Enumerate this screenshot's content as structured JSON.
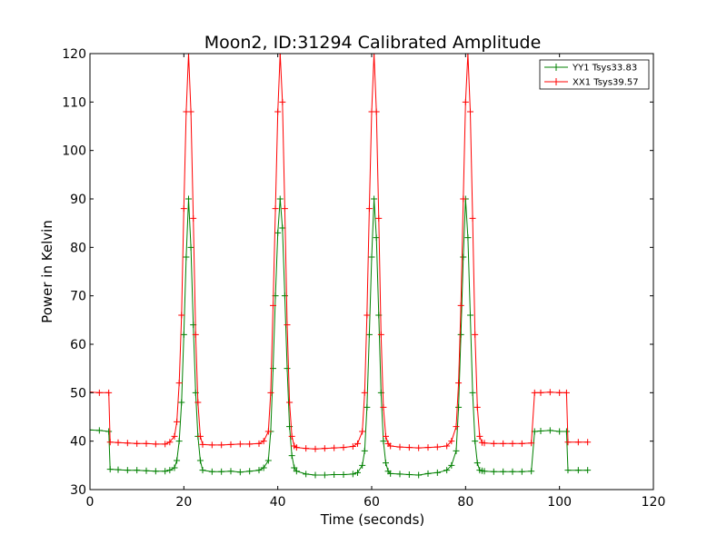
{
  "chart_data": {
    "type": "line",
    "title": "Moon2, ID:31294 Calibrated Amplitude",
    "xlabel": "Time (seconds)",
    "ylabel": "Power in Kelvin",
    "xlim": [
      0,
      120
    ],
    "ylim": [
      30,
      120
    ],
    "xticks": [
      0,
      20,
      40,
      60,
      80,
      100,
      120
    ],
    "yticks": [
      30,
      40,
      50,
      60,
      70,
      80,
      90,
      100,
      110,
      120
    ],
    "grid": false,
    "legend_position": "top-right",
    "series": [
      {
        "name": "YY1 Tsys33.83",
        "color": "#008000",
        "marker": "+",
        "x": [
          0,
          2,
          4,
          4.3,
          6,
          8,
          10,
          12,
          14,
          16,
          17,
          18,
          18.5,
          19,
          19.5,
          20,
          20.5,
          21,
          21.5,
          22,
          22.5,
          23,
          23.5,
          24,
          26,
          28,
          30,
          32,
          34,
          36,
          37,
          38,
          38.5,
          39,
          39.5,
          40,
          40.5,
          41,
          41.5,
          42,
          42.5,
          43,
          43.5,
          44,
          46,
          48,
          50,
          52,
          54,
          56,
          57,
          58,
          58.5,
          59,
          59.5,
          60,
          60.5,
          61,
          61.5,
          62,
          62.5,
          63,
          63.5,
          64,
          66,
          68,
          70,
          72,
          74,
          76,
          77,
          78,
          78.5,
          79,
          79.5,
          80,
          80.5,
          81,
          81.5,
          82,
          82.5,
          83,
          83.5,
          84,
          86,
          88,
          90,
          92,
          94,
          94.7,
          96,
          98,
          100,
          101.5,
          101.8,
          104,
          106
        ],
        "y": [
          42.3,
          42.2,
          42.0,
          34.2,
          34.1,
          34.0,
          34.0,
          33.9,
          33.8,
          33.8,
          34.0,
          34.5,
          36,
          40,
          48,
          62,
          78,
          90,
          80,
          64,
          50,
          41,
          36,
          34.0,
          33.7,
          33.7,
          33.8,
          33.6,
          33.8,
          34.0,
          34.5,
          36,
          42,
          55,
          70,
          83,
          90,
          84,
          70,
          55,
          43,
          37,
          34.5,
          33.8,
          33.2,
          33.0,
          33.0,
          33.1,
          33.1,
          33.2,
          33.5,
          35,
          38,
          47,
          62,
          78,
          90,
          82,
          66,
          50,
          40,
          35.5,
          33.8,
          33.3,
          33.2,
          33.1,
          33.0,
          33.3,
          33.5,
          34.0,
          35,
          38,
          47,
          62,
          78,
          90,
          82,
          66,
          50,
          40,
          35.5,
          34.0,
          33.9,
          33.8,
          33.7,
          33.7,
          33.7,
          33.7,
          33.8,
          42.0,
          42.1,
          42.2,
          42.0,
          42.0,
          34.0,
          34.0,
          34.0
        ]
      },
      {
        "name": "XX1 Tsys39.57",
        "color": "#ff0000",
        "marker": "+",
        "x": [
          0,
          2,
          4,
          4.3,
          6,
          8,
          10,
          12,
          14,
          16,
          17,
          18,
          18.5,
          19,
          19.5,
          20,
          20.5,
          21,
          21.5,
          22,
          22.5,
          23,
          23.5,
          24,
          26,
          28,
          30,
          32,
          34,
          36,
          37,
          38,
          38.5,
          39,
          39.5,
          40,
          40.5,
          41,
          41.5,
          42,
          42.5,
          43,
          43.5,
          44,
          46,
          48,
          50,
          52,
          54,
          56,
          57,
          58,
          58.5,
          59,
          59.5,
          60,
          60.5,
          61,
          61.5,
          62,
          62.5,
          63,
          63.5,
          64,
          66,
          68,
          70,
          72,
          74,
          76,
          77,
          78,
          78.5,
          79,
          79.5,
          80,
          80.5,
          81,
          81.5,
          82,
          82.5,
          83,
          83.5,
          84,
          86,
          88,
          90,
          92,
          94,
          94.7,
          96,
          98,
          100,
          101.5,
          101.8,
          104,
          106
        ],
        "y": [
          50.1,
          50.0,
          50.0,
          39.8,
          39.7,
          39.6,
          39.5,
          39.5,
          39.4,
          39.4,
          39.8,
          41,
          44,
          52,
          66,
          88,
          108,
          120,
          108,
          86,
          62,
          48,
          41,
          39.3,
          39.2,
          39.2,
          39.3,
          39.4,
          39.4,
          39.5,
          40,
          42,
          50,
          68,
          88,
          108,
          120,
          110,
          88,
          64,
          48,
          41,
          39,
          38.7,
          38.5,
          38.4,
          38.5,
          38.6,
          38.7,
          38.9,
          39.5,
          42,
          50,
          66,
          88,
          108,
          120,
          108,
          86,
          62,
          47,
          41,
          39.5,
          39.0,
          38.8,
          38.7,
          38.6,
          38.7,
          38.8,
          39.0,
          40,
          43,
          52,
          68,
          90,
          110,
          120,
          108,
          86,
          62,
          47,
          41,
          39.7,
          39.6,
          39.5,
          39.5,
          39.5,
          39.5,
          39.6,
          50.0,
          50.0,
          50.1,
          50.0,
          50.0,
          39.8,
          39.8,
          39.8
        ]
      }
    ]
  }
}
